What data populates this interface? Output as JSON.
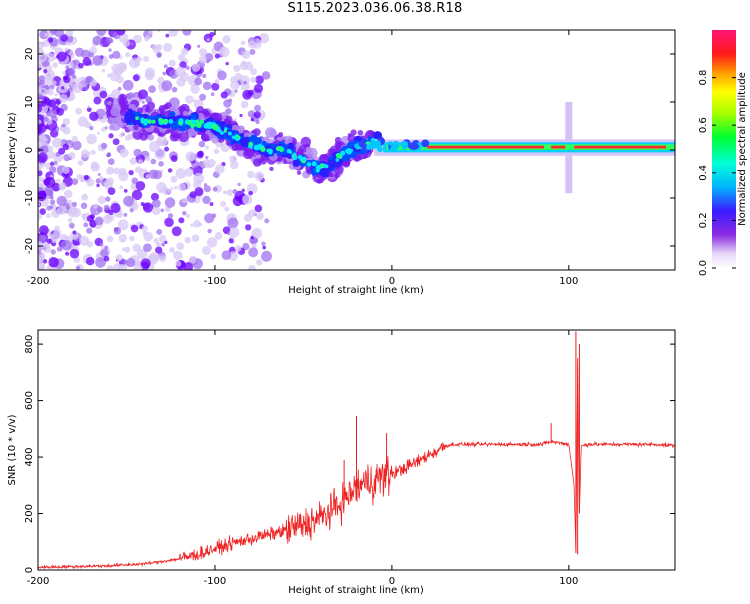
{
  "title": "S115.2023.036.06.38.R18",
  "colors": {
    "snr_line": "#ee2222",
    "axis": "#000000",
    "background": "#ffffff"
  },
  "chart_data": [
    {
      "type": "heatmap",
      "title": "",
      "xlabel": "Height of straight line (km)",
      "ylabel": "Frequency (Hz)",
      "xlim": [
        -200,
        160
      ],
      "ylim": [
        -25,
        25
      ],
      "xticks": [
        -200,
        -100,
        0,
        100
      ],
      "yticks": [
        -20,
        -10,
        0,
        10,
        20
      ],
      "colorbar": {
        "label": "Normalized spectral amplitude",
        "ticks": [
          "0.0",
          "0.2",
          "0.4",
          "0.6",
          "0.8"
        ],
        "range": [
          0,
          1
        ],
        "colormap": "rainbow"
      },
      "ridge": {
        "description_points_x": [
          -155,
          -140,
          -120,
          -100,
          -85,
          -70,
          -60,
          -50,
          -42,
          -35,
          -25,
          -15,
          -8,
          0,
          20,
          60,
          100,
          160
        ],
        "description_points_y": [
          8,
          6,
          6,
          5,
          2,
          0,
          0,
          -2,
          -4,
          -3,
          0,
          1,
          2,
          0.5,
          0.5,
          0.5,
          0.5,
          1
        ]
      },
      "grid": false
    },
    {
      "type": "line",
      "title": "",
      "xlabel": "Height of straight line (km)",
      "ylabel": "SNR (10 * v/v)",
      "xlim": [
        -200,
        160
      ],
      "ylim": [
        0,
        850
      ],
      "xticks": [
        -200,
        -100,
        0,
        100
      ],
      "yticks": [
        0,
        200,
        400,
        600,
        800
      ],
      "series": [
        {
          "x": [
            -200,
            -180,
            -160,
            -150,
            -140,
            -130,
            -120,
            -110,
            -100,
            -90,
            -80,
            -70,
            -60,
            -50,
            -40,
            -30,
            -25,
            -20,
            -15,
            -10,
            -5,
            0,
            5,
            10,
            15,
            20,
            25,
            30,
            35,
            40,
            50,
            60,
            70,
            80,
            85,
            90,
            95,
            100,
            103,
            104,
            105,
            106,
            107,
            110,
            120,
            130,
            140,
            150,
            160
          ],
          "y": [
            10,
            12,
            15,
            18,
            22,
            30,
            40,
            55,
            75,
            95,
            110,
            125,
            140,
            160,
            185,
            230,
            260,
            290,
            310,
            320,
            330,
            340,
            355,
            370,
            385,
            405,
            420,
            440,
            445,
            445,
            445,
            445,
            445,
            445,
            445,
            455,
            450,
            445,
            300,
            60,
            750,
            200,
            440,
            445,
            445,
            445,
            445,
            445,
            440
          ]
        }
      ],
      "annotations_spikes": [
        {
          "x": -27,
          "y": 390
        },
        {
          "x": -20,
          "y": 545
        },
        {
          "x": -3,
          "y": 485
        },
        {
          "x": 90,
          "y": 520
        },
        {
          "x": 104,
          "y": 845
        },
        {
          "x": 106,
          "y": 800
        },
        {
          "x": 105,
          "y": 55
        }
      ],
      "grid": false
    }
  ]
}
